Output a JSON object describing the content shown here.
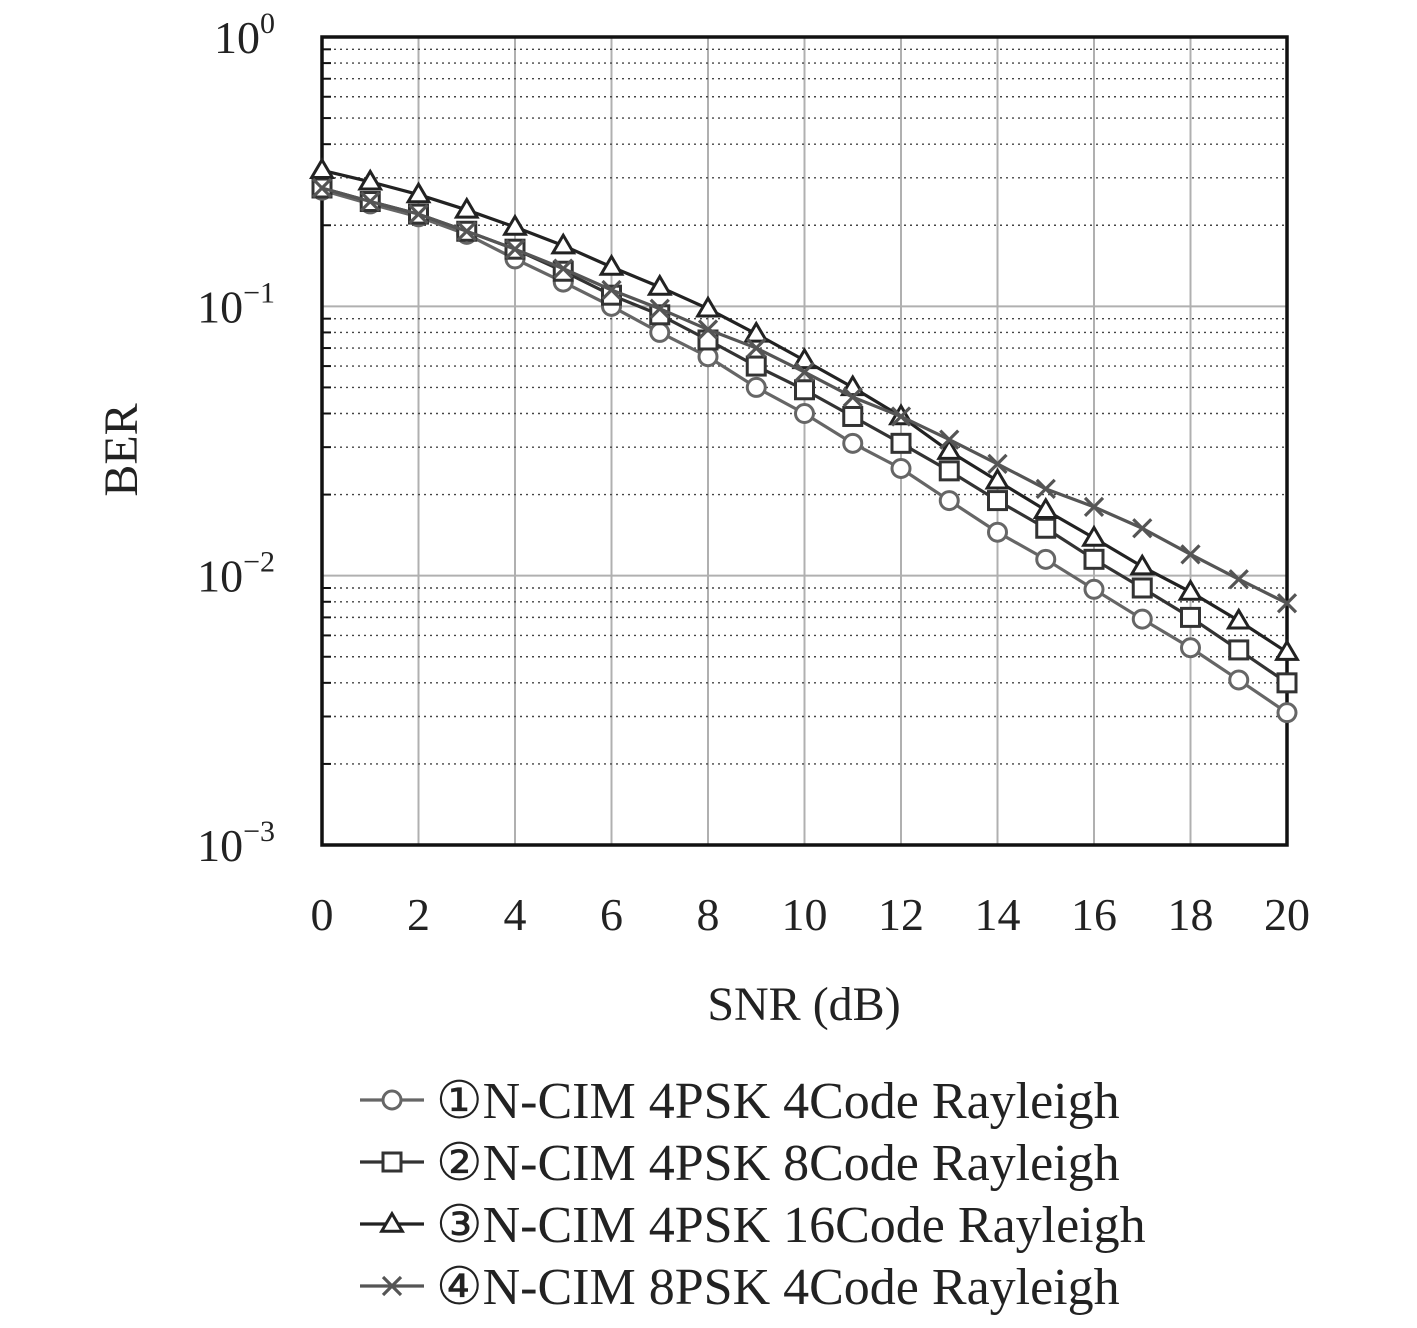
{
  "chart_data": {
    "type": "line",
    "title": "",
    "xlabel": "SNR (dB)",
    "ylabel": "BER",
    "xlim": [
      0,
      20
    ],
    "ylim": [
      0.001,
      1
    ],
    "yscale": "log",
    "grid": true,
    "legend_position": "below",
    "x": [
      0,
      1,
      2,
      3,
      4,
      5,
      6,
      7,
      8,
      9,
      10,
      11,
      12,
      13,
      14,
      15,
      16,
      17,
      18,
      19,
      20
    ],
    "x_ticks": [
      "0",
      "2",
      "4",
      "6",
      "8",
      "10",
      "12",
      "14",
      "16",
      "18",
      "20"
    ],
    "y_ticks": [
      {
        "base": "10",
        "exp": "0"
      },
      {
        "base": "10",
        "exp": "−1"
      },
      {
        "base": "10",
        "exp": "−2"
      },
      {
        "base": "10",
        "exp": "−3"
      }
    ],
    "series": [
      {
        "name": "①N-CIM 4PSK 4Code Rayleigh",
        "marker": "circle",
        "color": "#666666",
        "values": [
          0.27,
          0.24,
          0.215,
          0.185,
          0.15,
          0.123,
          0.1,
          0.08,
          0.065,
          0.05,
          0.04,
          0.031,
          0.025,
          0.019,
          0.0145,
          0.0115,
          0.0089,
          0.0069,
          0.0054,
          0.0041,
          0.0031
        ]
      },
      {
        "name": "②N-CIM 4PSK 8Code Rayleigh",
        "marker": "square",
        "color": "#333333",
        "values": [
          0.275,
          0.245,
          0.22,
          0.19,
          0.163,
          0.135,
          0.11,
          0.093,
          0.075,
          0.06,
          0.049,
          0.039,
          0.031,
          0.0245,
          0.019,
          0.015,
          0.0115,
          0.009,
          0.007,
          0.0053,
          0.004
        ]
      },
      {
        "name": "③N-CIM 4PSK 16Code Rayleigh",
        "marker": "triangle",
        "color": "#222222",
        "values": [
          0.32,
          0.29,
          0.26,
          0.228,
          0.197,
          0.168,
          0.14,
          0.118,
          0.098,
          0.079,
          0.063,
          0.05,
          0.039,
          0.029,
          0.0225,
          0.0175,
          0.0138,
          0.0108,
          0.0087,
          0.0068,
          0.0052
        ]
      },
      {
        "name": "④N-CIM 8PSK 4Code Rayleigh",
        "marker": "x",
        "color": "#555555",
        "values": [
          0.275,
          0.245,
          0.22,
          0.19,
          0.163,
          0.138,
          0.115,
          0.098,
          0.082,
          0.07,
          0.057,
          0.046,
          0.039,
          0.032,
          0.026,
          0.021,
          0.018,
          0.015,
          0.012,
          0.0097,
          0.0079
        ]
      }
    ]
  }
}
